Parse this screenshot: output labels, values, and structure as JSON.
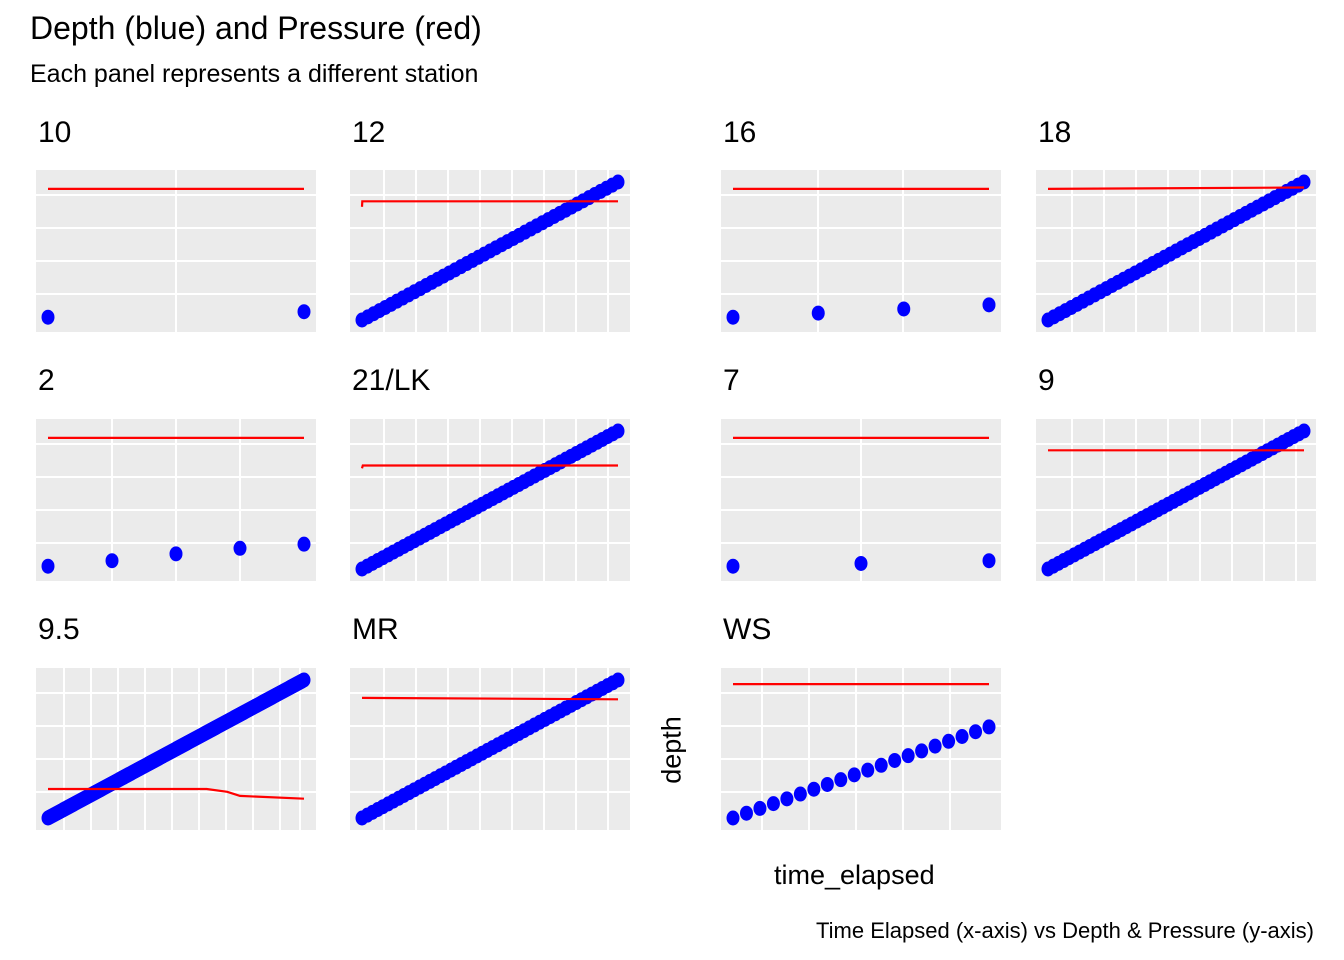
{
  "chart_data": {
    "type": "scatter",
    "title": "Depth (blue) and Pressure (red)",
    "subtitle": "Each panel represents a different station",
    "xlabel": "time_elapsed",
    "ylabel": "depth",
    "caption": "Time Elapsed (x-axis) vs Depth & Pressure (y-axis)",
    "facet_by": "station",
    "grid": true,
    "axis_ticks_shown": false,
    "colors": {
      "depth": "#0000ff",
      "pressure": "#ff0000",
      "panel": "#ebebeb",
      "grid": "#ffffff"
    },
    "panels": [
      {
        "station": "10",
        "depth": {
          "x": [
            0,
            1
          ],
          "y": [
            0.02,
            0.06
          ],
          "marker_size": "large"
        },
        "pressure_line": {
          "x": [
            0,
            1
          ],
          "y": [
            0.95,
            0.95
          ]
        }
      },
      {
        "station": "12",
        "depth": {
          "x_range": [
            0,
            1
          ],
          "y_range": [
            0.0,
            1.0
          ],
          "points": 45,
          "marker_size": "large"
        },
        "pressure_line": {
          "x": [
            0,
            0.001,
            0.003,
            1
          ],
          "y": [
            0.82,
            0.86,
            0.86,
            0.86
          ]
        }
      },
      {
        "station": "16",
        "depth": {
          "x": [
            0,
            0.333,
            0.667,
            1
          ],
          "y": [
            0.02,
            0.05,
            0.08,
            0.11
          ],
          "marker_size": "large"
        },
        "pressure_line": {
          "x": [
            0,
            1
          ],
          "y": [
            0.95,
            0.95
          ]
        }
      },
      {
        "station": "18",
        "depth": {
          "x_range": [
            0,
            1
          ],
          "y_range": [
            0.0,
            1.0
          ],
          "points": 45,
          "marker_size": "large"
        },
        "pressure_line": {
          "x": [
            0,
            1
          ],
          "y": [
            0.95,
            0.96
          ]
        }
      },
      {
        "station": "2",
        "depth": {
          "x": [
            0,
            0.25,
            0.5,
            0.75,
            1
          ],
          "y": [
            0.02,
            0.06,
            0.11,
            0.15,
            0.18
          ],
          "marker_size": "large"
        },
        "pressure_line": {
          "x": [
            0,
            1
          ],
          "y": [
            0.95,
            0.95
          ]
        }
      },
      {
        "station": "21/LK",
        "depth": {
          "x_range": [
            0,
            1
          ],
          "y_range": [
            0.0,
            1.0
          ],
          "points": 50,
          "marker_size": "large"
        },
        "pressure_line": {
          "x": [
            0,
            0.003,
            1
          ],
          "y": [
            0.73,
            0.75,
            0.75
          ]
        }
      },
      {
        "station": "7",
        "depth": {
          "x": [
            0,
            0.5,
            1
          ],
          "y": [
            0.02,
            0.04,
            0.06
          ],
          "marker_size": "large"
        },
        "pressure_line": {
          "x": [
            0,
            1
          ],
          "y": [
            0.95,
            0.95
          ]
        }
      },
      {
        "station": "9",
        "depth": {
          "x_range": [
            0,
            1
          ],
          "y_range": [
            0.0,
            1.0
          ],
          "points": 50,
          "marker_size": "large"
        },
        "pressure_line": {
          "x": [
            0,
            1
          ],
          "y": [
            0.86,
            0.86
          ]
        }
      },
      {
        "station": "9.5",
        "depth": {
          "x_range": [
            0,
            1
          ],
          "y_range": [
            0.0,
            1.0
          ],
          "points": 220,
          "marker_size": "large"
        },
        "pressure_line": {
          "x": [
            0,
            0.3,
            0.62,
            0.7,
            0.75,
            1
          ],
          "y": [
            0.21,
            0.21,
            0.21,
            0.19,
            0.16,
            0.14
          ]
        }
      },
      {
        "station": "MR",
        "depth": {
          "x_range": [
            0,
            1
          ],
          "y_range": [
            0.0,
            1.0
          ],
          "points": 50,
          "marker_size": "large"
        },
        "pressure_line": {
          "x": [
            0,
            1
          ],
          "y": [
            0.87,
            0.86
          ]
        }
      },
      {
        "station": "WS",
        "depth": {
          "x_range": [
            0,
            1
          ],
          "y_range": [
            0.0,
            0.66
          ],
          "points": 20,
          "marker_size": "large"
        },
        "pressure_line": {
          "x": [
            0,
            1
          ],
          "y": [
            0.97,
            0.97
          ]
        }
      }
    ]
  }
}
